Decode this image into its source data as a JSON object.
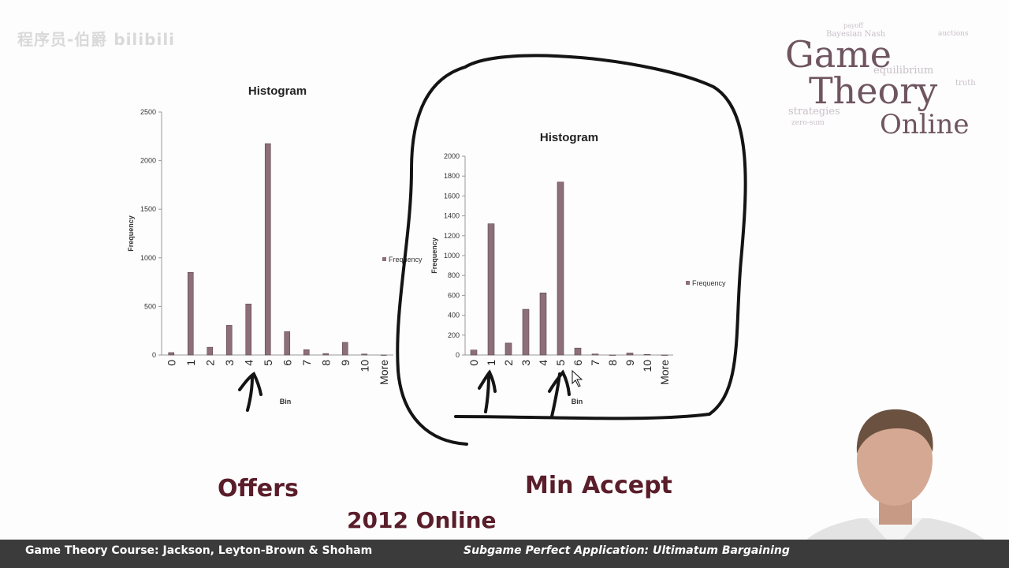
{
  "watermark": "程序员-伯爵 bilibili",
  "logo": {
    "line1": "Game",
    "line2": "Theory",
    "line3": "Online",
    "cloud_words": [
      "payoff",
      "Bayesian Nash",
      "equilibrium",
      "strategies",
      "zero-sum",
      "auctions",
      "truth"
    ]
  },
  "charts": [
    {
      "chart_data": {
        "type": "bar",
        "title": "Histogram",
        "xlabel": "Bin",
        "ylabel": "Frequency",
        "legend": "Frequency",
        "legend_position": "right",
        "categories": [
          "0",
          "1",
          "2",
          "3",
          "4",
          "5",
          "6",
          "7",
          "8",
          "9",
          "10",
          "More"
        ],
        "values": [
          25,
          850,
          80,
          305,
          525,
          2175,
          240,
          55,
          15,
          130,
          10,
          0
        ],
        "ylim": [
          0,
          2500
        ],
        "yticks": [
          "0",
          "500",
          "1000",
          "1500",
          "2000",
          "2500"
        ],
        "bar_color": "#8c6f78"
      }
    },
    {
      "chart_data": {
        "type": "bar",
        "title": "Histogram",
        "xlabel": "Bin",
        "ylabel": "Frequency",
        "legend": "Frequency",
        "legend_position": "right",
        "categories": [
          "0",
          "1",
          "2",
          "3",
          "4",
          "5",
          "6",
          "7",
          "8",
          "9",
          "10",
          "More"
        ],
        "values": [
          50,
          1320,
          120,
          460,
          625,
          1740,
          70,
          10,
          0,
          20,
          5,
          0
        ],
        "ylim": [
          0,
          2000
        ],
        "yticks": [
          "0",
          "200",
          "400",
          "600",
          "800",
          "1000",
          "1200",
          "1400",
          "1600",
          "1800",
          "2000"
        ],
        "bar_color": "#8c6f78"
      }
    }
  ],
  "captions": {
    "offers": "Offers",
    "min_accept": "Min Accept",
    "year": "2012 Online"
  },
  "footer": {
    "left": "Game Theory Course: Jackson, Leyton-Brown & Shoham",
    "right": "Subgame Perfect Application: Ultimatum Bargaining"
  },
  "colors": {
    "caption": "#5a1d2a",
    "footer_bg": "#3b3b3b",
    "ink": "#111111"
  }
}
